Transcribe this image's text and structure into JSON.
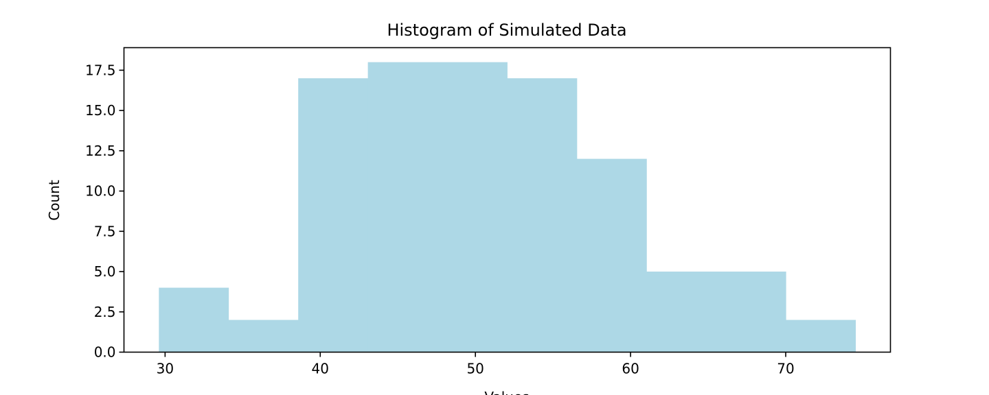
{
  "chart_data": {
    "type": "bar",
    "subtype": "histogram",
    "title": "Histogram of Simulated Data",
    "xlabel": "Values",
    "ylabel": "Count",
    "bin_edges": [
      29.6,
      34.09,
      38.58,
      43.07,
      47.56,
      52.05,
      56.54,
      61.03,
      65.52,
      70.01,
      74.5
    ],
    "values": [
      4,
      2,
      17,
      18,
      18,
      17,
      12,
      5,
      5,
      2
    ],
    "xlim": [
      27.35,
      76.75
    ],
    "ylim": [
      0,
      18.9
    ],
    "xticks": [
      30,
      40,
      50,
      60,
      70
    ],
    "xtick_labels": [
      "30",
      "40",
      "50",
      "60",
      "70"
    ],
    "yticks": [
      0,
      2.5,
      5,
      7.5,
      10,
      12.5,
      15,
      17.5
    ],
    "ytick_labels": [
      "0.0",
      "2.5",
      "5.0",
      "7.5",
      "10.0",
      "12.5",
      "15.0",
      "17.5"
    ],
    "bar_color": "#add8e6",
    "grid": false,
    "legend": false
  }
}
